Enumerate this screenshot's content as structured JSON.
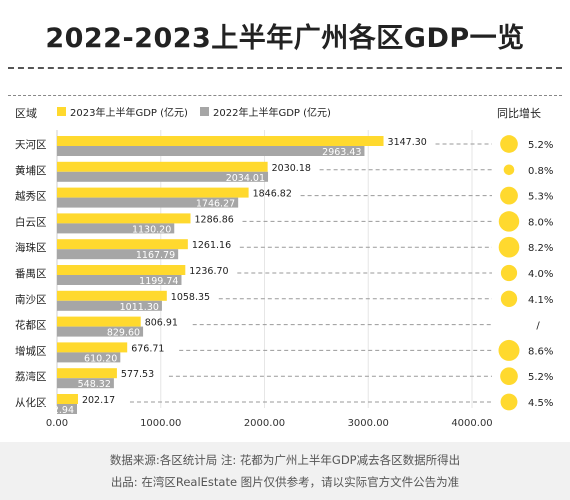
{
  "title": "2022-2023上半年广州各区GDP一览",
  "header": {
    "region_label": "区域",
    "yoy_label": "同比增长"
  },
  "colors": {
    "series_2023": "#FFD92E",
    "series_2022": "#A6A6A6",
    "bubble": "#FFD92E",
    "dash": "#9a9a9a"
  },
  "chart_data": {
    "type": "bar",
    "orientation": "horizontal",
    "categories": [
      "天河区",
      "黄埔区",
      "越秀区",
      "白云区",
      "海珠区",
      "番禺区",
      "南沙区",
      "花都区",
      "增城区",
      "荔湾区",
      "从化区"
    ],
    "series": [
      {
        "name": "2023年上半年GDP (亿元)",
        "values": [
          3147.3,
          2030.18,
          1846.82,
          1286.86,
          1261.16,
          1236.7,
          1058.35,
          806.91,
          676.71,
          577.53,
          202.17
        ]
      },
      {
        "name": "2022年上半年GDP (亿元)",
        "values": [
          2963.43,
          2034.01,
          1746.27,
          1130.2,
          1167.79,
          1199.74,
          1011.3,
          829.6,
          610.2,
          548.32,
          192.94
        ]
      }
    ],
    "value_labels_2023": [
      "3147.30",
      "2030.18",
      "1846.82",
      "1286.86",
      "1261.16",
      "1236.70",
      "1058.35",
      "806.91",
      "676.71",
      "577.53",
      "202.17"
    ],
    "value_labels_2022": [
      "2963.43",
      "2034.01",
      "1746.27",
      "1130.20",
      "1167.79",
      "1199.74",
      "1011.30",
      "829.60",
      "610.20",
      "548.32",
      "192.94"
    ],
    "yoy_growth": [
      5.2,
      0.8,
      5.3,
      8.0,
      8.2,
      4.0,
      4.1,
      null,
      8.6,
      5.2,
      4.5
    ],
    "yoy_labels": [
      "5.2%",
      "0.8%",
      "5.3%",
      "8.0%",
      "8.2%",
      "4.0%",
      "4.1%",
      "/",
      "8.6%",
      "5.2%",
      "4.5%"
    ],
    "x_ticks": [
      0,
      1000,
      2000,
      3000,
      4000
    ],
    "x_tick_labels": [
      "0.00",
      "1000.00",
      "2000.00",
      "3000.00",
      "4000.00"
    ],
    "xlim": [
      0,
      4200
    ],
    "legend_position": "top",
    "grid": true
  },
  "footer": {
    "line1": "数据来源:各区统计局 注: 花都为广州上半年GDP减去各区数据所得出",
    "line2": "出品: 在湾区RealEstate   图片仅供参考，请以实际官方文件公告为准"
  }
}
